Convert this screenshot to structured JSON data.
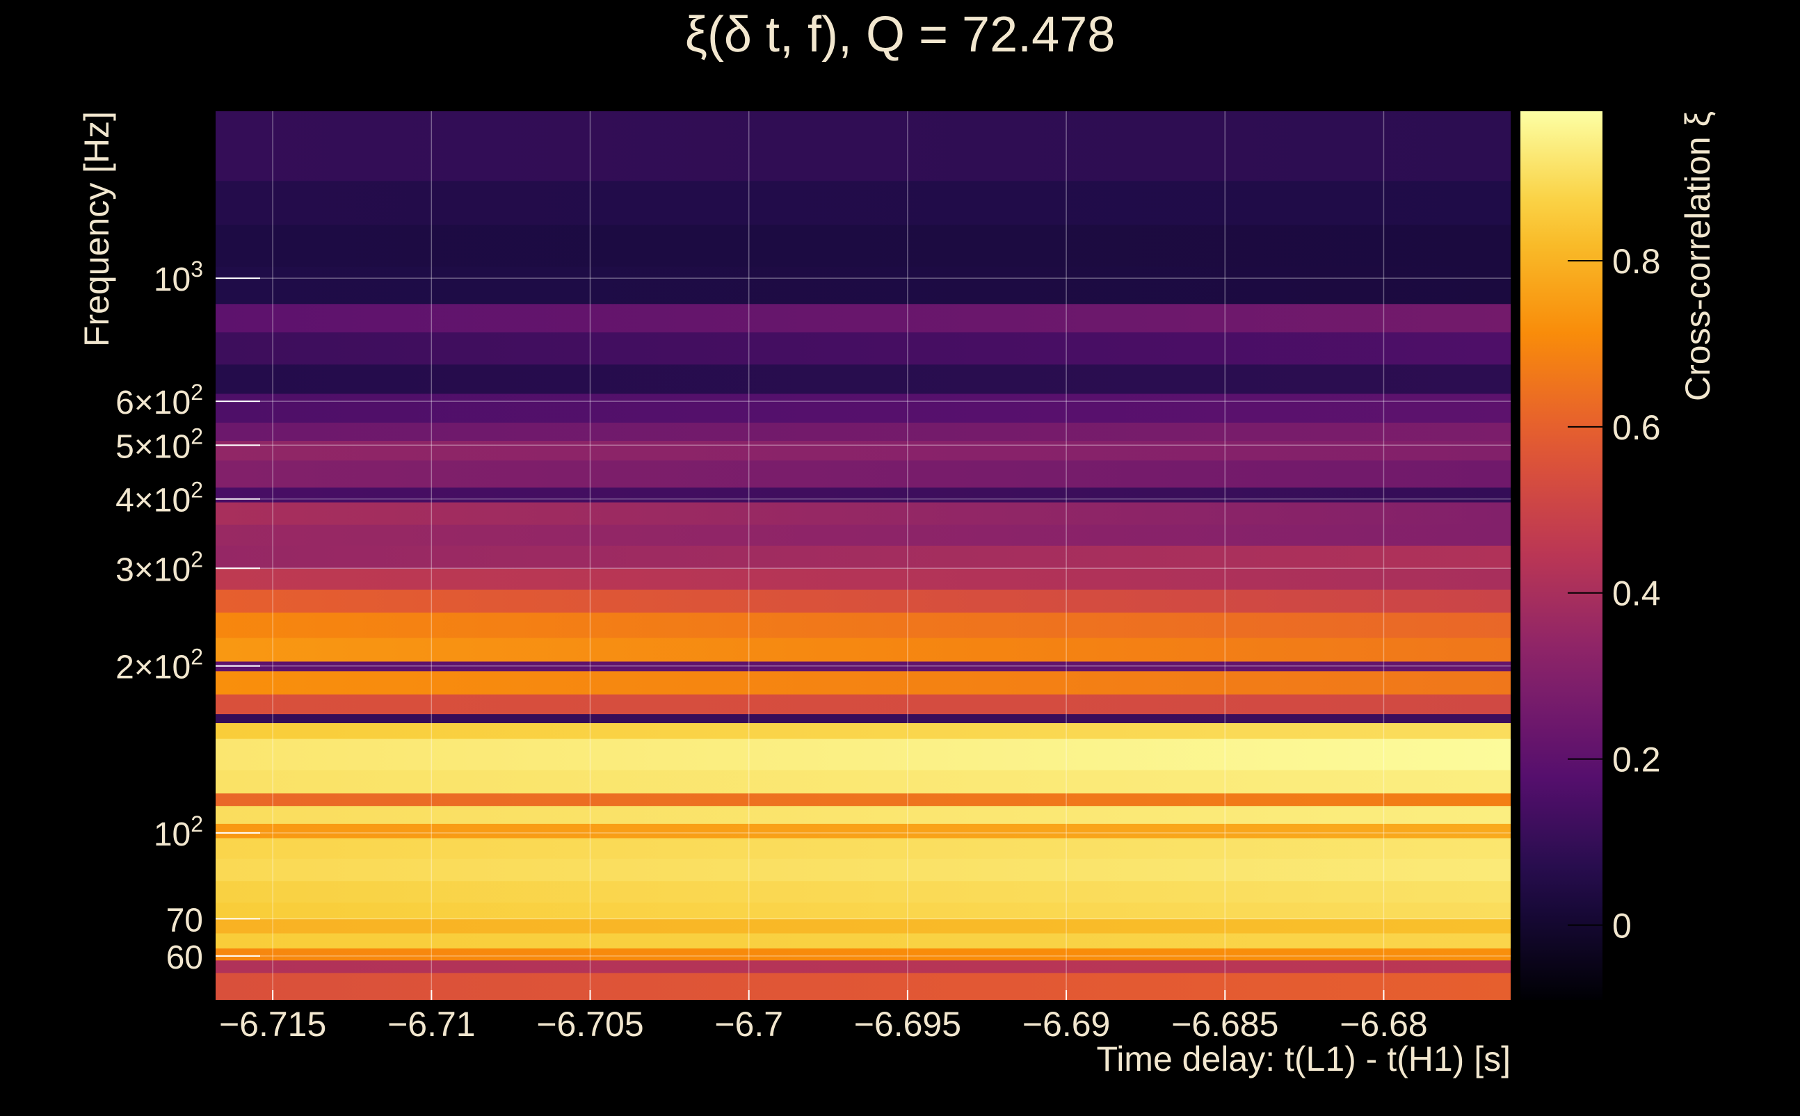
{
  "chart_data": {
    "type": "heatmap",
    "title": "ξ(δ t, f), Q = 72.478",
    "xlabel": "Time delay: t(L1) - t(H1) [s]",
    "ylabel": "Frequency [Hz]",
    "colorbar_label": "Cross-correlation ξ",
    "colormap": "inferno",
    "xlim": [
      -6.7168,
      -6.676
    ],
    "ylim": [
      50,
      2000
    ],
    "yscale": "log",
    "grid": true,
    "x_ticks": [
      {
        "value": -6.715,
        "label": "−6.715"
      },
      {
        "value": -6.71,
        "label": "−6.71"
      },
      {
        "value": -6.705,
        "label": "−6.705"
      },
      {
        "value": -6.7,
        "label": "−6.7"
      },
      {
        "value": -6.695,
        "label": "−6.695"
      },
      {
        "value": -6.69,
        "label": "−6.69"
      },
      {
        "value": -6.685,
        "label": "−6.685"
      },
      {
        "value": -6.68,
        "label": "−6.68"
      }
    ],
    "y_ticks": [
      {
        "value": 60,
        "label": "60"
      },
      {
        "value": 70,
        "label": "70"
      },
      {
        "value": 100,
        "base": "10",
        "exp": "2"
      },
      {
        "value": 200,
        "mant": "2×10",
        "exp": "2"
      },
      {
        "value": 300,
        "mant": "3×10",
        "exp": "2"
      },
      {
        "value": 400,
        "mant": "4×10",
        "exp": "2"
      },
      {
        "value": 500,
        "mant": "5×10",
        "exp": "2"
      },
      {
        "value": 600,
        "mant": "6×10",
        "exp": "2"
      },
      {
        "value": 1000,
        "base": "10",
        "exp": "3"
      }
    ],
    "colorbar": {
      "range": [
        -0.09,
        0.98
      ],
      "ticks": [
        {
          "value": 0,
          "label": "0"
        },
        {
          "value": 0.2,
          "label": "0.2"
        },
        {
          "value": 0.4,
          "label": "0.4"
        },
        {
          "value": 0.6,
          "label": "0.6"
        },
        {
          "value": 0.8,
          "label": "0.8"
        }
      ]
    },
    "frequency_bands": [
      {
        "f_low": 50,
        "f_high": 56,
        "xi_start": 0.55,
        "xi_end": 0.6
      },
      {
        "f_low": 56,
        "f_high": 59,
        "xi_start": 0.42,
        "xi_end": 0.45
      },
      {
        "f_low": 59,
        "f_high": 62,
        "xi_start": 0.7,
        "xi_end": 0.72
      },
      {
        "f_low": 62,
        "f_high": 66,
        "xi_start": 0.86,
        "xi_end": 0.88
      },
      {
        "f_low": 66,
        "f_high": 70,
        "xi_start": 0.8,
        "xi_end": 0.83
      },
      {
        "f_low": 70,
        "f_high": 75,
        "xi_start": 0.86,
        "xi_end": 0.9
      },
      {
        "f_low": 75,
        "f_high": 82,
        "xi_start": 0.87,
        "xi_end": 0.91
      },
      {
        "f_low": 82,
        "f_high": 90,
        "xi_start": 0.89,
        "xi_end": 0.93
      },
      {
        "f_low": 90,
        "f_high": 98,
        "xi_start": 0.88,
        "xi_end": 0.92
      },
      {
        "f_low": 98,
        "f_high": 104,
        "xi_start": 0.74,
        "xi_end": 0.78
      },
      {
        "f_low": 104,
        "f_high": 112,
        "xi_start": 0.9,
        "xi_end": 0.94
      },
      {
        "f_low": 112,
        "f_high": 118,
        "xi_start": 0.62,
        "xi_end": 0.68
      },
      {
        "f_low": 118,
        "f_high": 130,
        "xi_start": 0.91,
        "xi_end": 0.94
      },
      {
        "f_low": 130,
        "f_high": 148,
        "xi_start": 0.92,
        "xi_end": 0.97
      },
      {
        "f_low": 148,
        "f_high": 158,
        "xi_start": 0.86,
        "xi_end": 0.9
      },
      {
        "f_low": 158,
        "f_high": 164,
        "xi_start": 0.1,
        "xi_end": 0.12
      },
      {
        "f_low": 164,
        "f_high": 178,
        "xi_start": 0.55,
        "xi_end": 0.52
      },
      {
        "f_low": 178,
        "f_high": 196,
        "xi_start": 0.72,
        "xi_end": 0.66
      },
      {
        "f_low": 196,
        "f_high": 204,
        "xi_start": 0.2,
        "xi_end": 0.22
      },
      {
        "f_low": 204,
        "f_high": 225,
        "xi_start": 0.74,
        "xi_end": 0.66
      },
      {
        "f_low": 225,
        "f_high": 250,
        "xi_start": 0.7,
        "xi_end": 0.62
      },
      {
        "f_low": 250,
        "f_high": 275,
        "xi_start": 0.6,
        "xi_end": 0.5
      },
      {
        "f_low": 275,
        "f_high": 300,
        "xi_start": 0.46,
        "xi_end": 0.4
      },
      {
        "f_low": 300,
        "f_high": 330,
        "xi_start": 0.35,
        "xi_end": 0.42
      },
      {
        "f_low": 330,
        "f_high": 360,
        "xi_start": 0.36,
        "xi_end": 0.3
      },
      {
        "f_low": 360,
        "f_high": 395,
        "xi_start": 0.4,
        "xi_end": 0.3
      },
      {
        "f_low": 395,
        "f_high": 420,
        "xi_start": 0.15,
        "xi_end": 0.1
      },
      {
        "f_low": 420,
        "f_high": 470,
        "xi_start": 0.3,
        "xi_end": 0.25
      },
      {
        "f_low": 470,
        "f_high": 510,
        "xi_start": 0.34,
        "xi_end": 0.3
      },
      {
        "f_low": 510,
        "f_high": 550,
        "xi_start": 0.24,
        "xi_end": 0.28
      },
      {
        "f_low": 550,
        "f_high": 620,
        "xi_start": 0.16,
        "xi_end": 0.2
      },
      {
        "f_low": 620,
        "f_high": 700,
        "xi_start": 0.06,
        "xi_end": 0.08
      },
      {
        "f_low": 700,
        "f_high": 800,
        "xi_start": 0.12,
        "xi_end": 0.16
      },
      {
        "f_low": 800,
        "f_high": 900,
        "xi_start": 0.2,
        "xi_end": 0.26
      },
      {
        "f_low": 900,
        "f_high": 1050,
        "xi_start": 0.05,
        "xi_end": 0.03
      },
      {
        "f_low": 1050,
        "f_high": 1250,
        "xi_start": 0.04,
        "xi_end": 0.03
      },
      {
        "f_low": 1250,
        "f_high": 1500,
        "xi_start": 0.06,
        "xi_end": 0.05
      },
      {
        "f_low": 1500,
        "f_high": 2000,
        "xi_start": 0.1,
        "xi_end": 0.08
      }
    ]
  }
}
